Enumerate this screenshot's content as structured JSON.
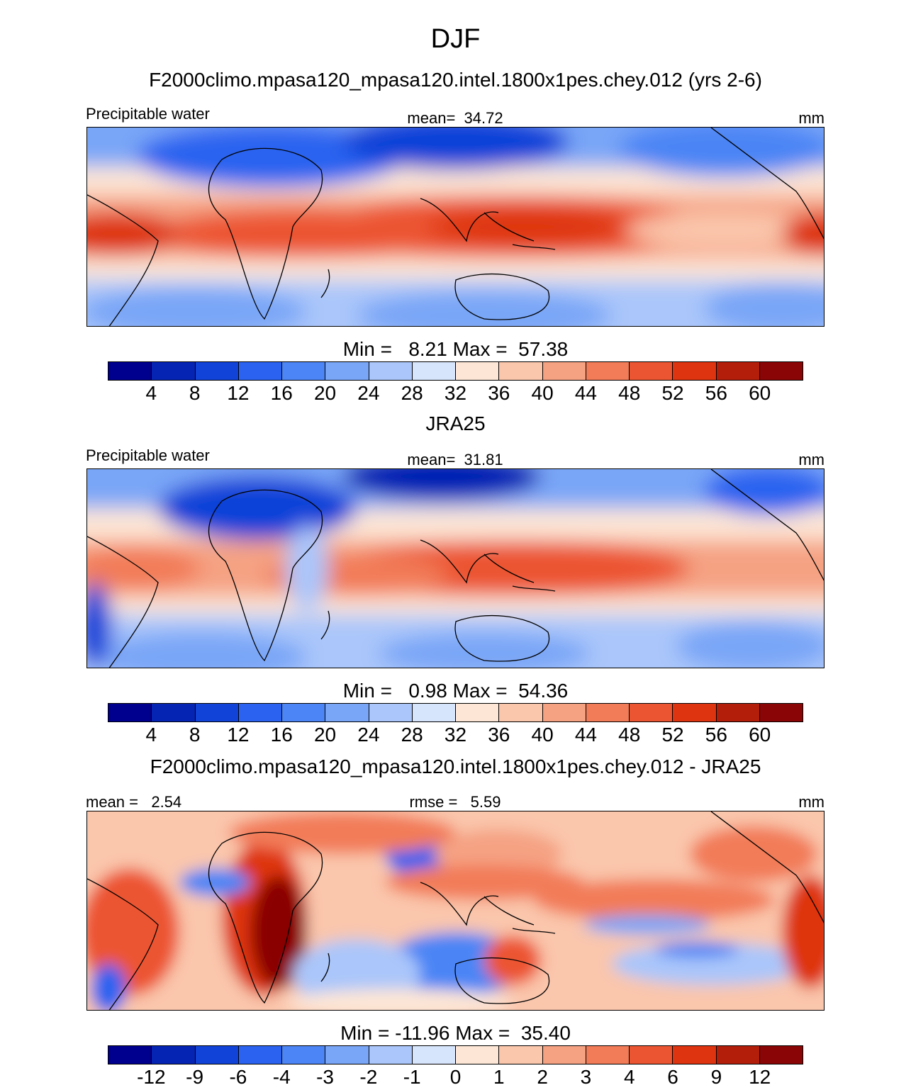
{
  "figure": {
    "title": "DJF"
  },
  "palette": [
    "#00008f",
    "#0524b4",
    "#1143d8",
    "#2b63f0",
    "#4c85f5",
    "#79a6f7",
    "#aac6fa",
    "#d6e4fc",
    "#fde6d6",
    "#fac6ac",
    "#f5a283",
    "#f27b58",
    "#ec5531",
    "#de3410",
    "#b31e0a",
    "#8a0505"
  ],
  "panels": [
    {
      "title": "F2000climo.mpasa120_mpasa120.intel.1800x1pes.chey.012 (yrs 2-6)",
      "left_label": "Precipitable water",
      "center_label": "mean=  34.72",
      "right_label": "mm",
      "minmax": "Min =   8.21 Max =  57.38",
      "colorbar_ticks": [
        "4",
        "8",
        "12",
        "16",
        "20",
        "24",
        "28",
        "32",
        "36",
        "40",
        "44",
        "48",
        "52",
        "56",
        "60"
      ]
    },
    {
      "title": "JRA25",
      "left_label": "Precipitable water",
      "center_label": "mean=  31.81",
      "right_label": "mm",
      "minmax": "Min =   0.98 Max =  54.36",
      "colorbar_ticks": [
        "4",
        "8",
        "12",
        "16",
        "20",
        "24",
        "28",
        "32",
        "36",
        "40",
        "44",
        "48",
        "52",
        "56",
        "60"
      ]
    },
    {
      "title": "F2000climo.mpasa120_mpasa120.intel.1800x1pes.chey.012 - JRA25",
      "left_label": "mean =   2.54",
      "center_label": "rmse =   5.59",
      "right_label": "mm",
      "minmax": "Min = -11.96 Max =  35.40",
      "colorbar_ticks": [
        "-12",
        "-9",
        "-6",
        "-4",
        "-3",
        "-2",
        "-1",
        "0",
        "1",
        "2",
        "3",
        "4",
        "6",
        "9",
        "12"
      ]
    }
  ]
}
